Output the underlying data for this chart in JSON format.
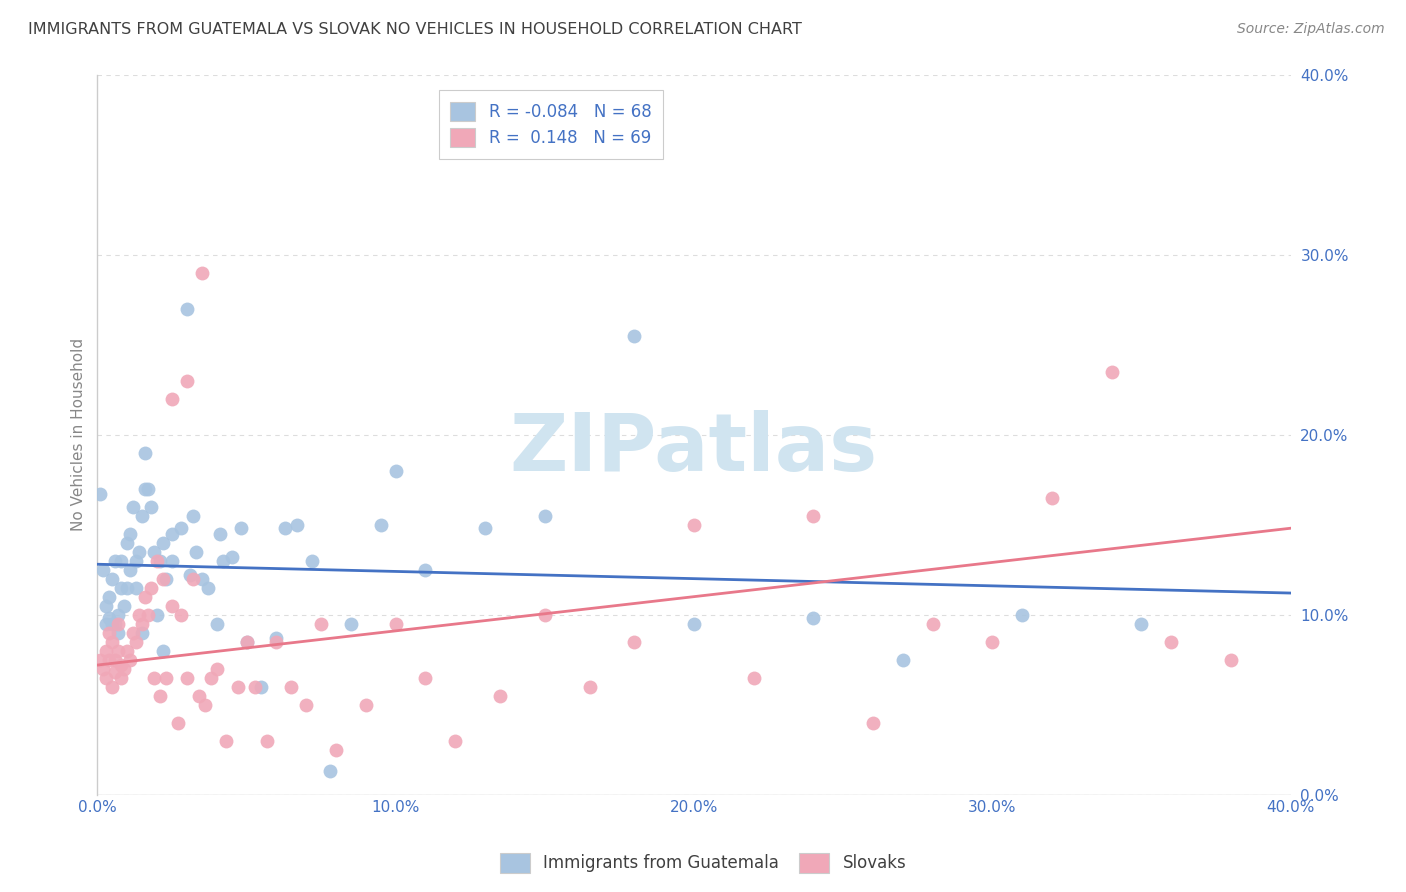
{
  "title": "IMMIGRANTS FROM GUATEMALA VS SLOVAK NO VEHICLES IN HOUSEHOLD CORRELATION CHART",
  "source": "Source: ZipAtlas.com",
  "ylabel": "No Vehicles in Household",
  "xlim": [
    0.0,
    0.4
  ],
  "ylim": [
    0.0,
    0.4
  ],
  "xticks": [
    0.0,
    0.1,
    0.2,
    0.3,
    0.4
  ],
  "yticks": [
    0.0,
    0.1,
    0.2,
    0.3,
    0.4
  ],
  "xtick_labels": [
    "0.0%",
    "10.0%",
    "20.0%",
    "30.0%",
    "40.0%"
  ],
  "ytick_labels": [
    "0.0%",
    "10.0%",
    "20.0%",
    "30.0%",
    "40.0%"
  ],
  "blue_color": "#a8c4e0",
  "pink_color": "#f0a8b8",
  "blue_line_color": "#4472c4",
  "pink_line_color": "#e8788a",
  "legend_text_color": "#4472c4",
  "title_color": "#404040",
  "source_color": "#888888",
  "axis_label_color": "#888888",
  "tick_color": "#aaaaaa",
  "grid_color": "#dddddd",
  "R_blue": -0.084,
  "N_blue": 68,
  "R_pink": 0.148,
  "N_pink": 69,
  "blue_line_y0": 0.128,
  "blue_line_y1": 0.112,
  "pink_line_y0": 0.072,
  "pink_line_y1": 0.148,
  "blue_scatter_x": [
    0.001,
    0.002,
    0.003,
    0.003,
    0.004,
    0.004,
    0.005,
    0.005,
    0.006,
    0.006,
    0.007,
    0.007,
    0.008,
    0.008,
    0.009,
    0.01,
    0.01,
    0.011,
    0.011,
    0.012,
    0.013,
    0.013,
    0.014,
    0.015,
    0.015,
    0.016,
    0.016,
    0.017,
    0.018,
    0.019,
    0.02,
    0.021,
    0.022,
    0.022,
    0.023,
    0.025,
    0.025,
    0.028,
    0.03,
    0.031,
    0.032,
    0.033,
    0.035,
    0.037,
    0.04,
    0.041,
    0.042,
    0.045,
    0.048,
    0.05,
    0.055,
    0.06,
    0.063,
    0.067,
    0.072,
    0.078,
    0.085,
    0.095,
    0.1,
    0.11,
    0.13,
    0.15,
    0.18,
    0.2,
    0.24,
    0.27,
    0.31,
    0.35
  ],
  "blue_scatter_y": [
    0.167,
    0.125,
    0.095,
    0.105,
    0.11,
    0.098,
    0.12,
    0.095,
    0.13,
    0.095,
    0.1,
    0.09,
    0.115,
    0.13,
    0.105,
    0.14,
    0.115,
    0.145,
    0.125,
    0.16,
    0.13,
    0.115,
    0.135,
    0.155,
    0.09,
    0.17,
    0.19,
    0.17,
    0.16,
    0.135,
    0.1,
    0.13,
    0.08,
    0.14,
    0.12,
    0.145,
    0.13,
    0.148,
    0.27,
    0.122,
    0.155,
    0.135,
    0.12,
    0.115,
    0.095,
    0.145,
    0.13,
    0.132,
    0.148,
    0.085,
    0.06,
    0.087,
    0.148,
    0.15,
    0.13,
    0.013,
    0.095,
    0.15,
    0.18,
    0.125,
    0.148,
    0.155,
    0.255,
    0.095,
    0.098,
    0.075,
    0.1,
    0.095
  ],
  "pink_scatter_x": [
    0.001,
    0.002,
    0.003,
    0.003,
    0.004,
    0.004,
    0.005,
    0.005,
    0.006,
    0.006,
    0.007,
    0.007,
    0.008,
    0.008,
    0.009,
    0.01,
    0.011,
    0.012,
    0.013,
    0.014,
    0.015,
    0.016,
    0.017,
    0.018,
    0.019,
    0.02,
    0.021,
    0.022,
    0.023,
    0.025,
    0.027,
    0.028,
    0.03,
    0.032,
    0.034,
    0.036,
    0.038,
    0.04,
    0.043,
    0.047,
    0.05,
    0.053,
    0.057,
    0.06,
    0.065,
    0.07,
    0.075,
    0.08,
    0.09,
    0.1,
    0.11,
    0.12,
    0.135,
    0.15,
    0.165,
    0.18,
    0.2,
    0.22,
    0.24,
    0.26,
    0.28,
    0.3,
    0.32,
    0.34,
    0.36,
    0.38,
    0.025,
    0.03,
    0.035
  ],
  "pink_scatter_y": [
    0.075,
    0.07,
    0.065,
    0.08,
    0.075,
    0.09,
    0.06,
    0.085,
    0.068,
    0.075,
    0.08,
    0.095,
    0.072,
    0.065,
    0.07,
    0.08,
    0.075,
    0.09,
    0.085,
    0.1,
    0.095,
    0.11,
    0.1,
    0.115,
    0.065,
    0.13,
    0.055,
    0.12,
    0.065,
    0.105,
    0.04,
    0.1,
    0.065,
    0.12,
    0.055,
    0.05,
    0.065,
    0.07,
    0.03,
    0.06,
    0.085,
    0.06,
    0.03,
    0.085,
    0.06,
    0.05,
    0.095,
    0.025,
    0.05,
    0.095,
    0.065,
    0.03,
    0.055,
    0.1,
    0.06,
    0.085,
    0.15,
    0.065,
    0.155,
    0.04,
    0.095,
    0.085,
    0.165,
    0.235,
    0.085,
    0.075,
    0.22,
    0.23,
    0.29
  ],
  "watermark": "ZIPatlas",
  "watermark_color": "#d0e4f0",
  "background_color": "#ffffff"
}
